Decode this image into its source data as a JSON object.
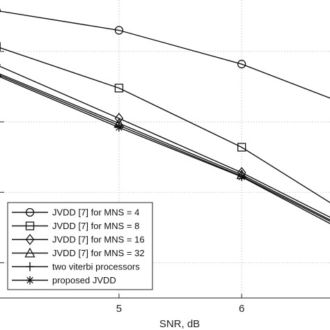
{
  "chart_data": {
    "type": "line",
    "title": "",
    "xlabel": "SNR, dB",
    "ylabel": "",
    "xlim": [
      4.03,
      6.72
    ],
    "ylog": true,
    "ylim_exponents": [
      -5.5,
      -1.27
    ],
    "grid": true,
    "legend_position": "bottom-left",
    "xticks": [
      {
        "value": 5,
        "label": "5"
      },
      {
        "value": 6,
        "label": "6"
      }
    ],
    "yticks_exponents": [
      -5,
      -4,
      -3,
      -2
    ],
    "series": [
      {
        "name": "JVDD [7] for MNS = 4",
        "marker": "circle",
        "x": [
          4,
          5,
          6,
          7
        ],
        "y_exp": [
          -1.42,
          -1.7,
          -2.18,
          -2.85
        ]
      },
      {
        "name": "JVDD [7] for MNS = 8",
        "marker": "square",
        "x": [
          4,
          5,
          6,
          7
        ],
        "y_exp": [
          -1.93,
          -2.52,
          -3.36,
          -4.45
        ]
      },
      {
        "name": "JVDD [7] for MNS = 16",
        "marker": "diamond",
        "x": [
          4,
          5,
          6,
          7
        ],
        "y_exp": [
          -2.19,
          -2.95,
          -3.72,
          -4.6
        ]
      },
      {
        "name": "JVDD [7] for MNS = 32",
        "marker": "triangle",
        "x": [
          4,
          5,
          6,
          7
        ],
        "y_exp": [
          -2.3,
          -3.02,
          -3.75,
          -4.64
        ]
      },
      {
        "name": "two viterbi processors",
        "marker": "plus",
        "x": [
          4,
          5,
          6,
          7
        ],
        "y_exp": [
          -2.32,
          -3.05,
          -3.77,
          -4.66
        ]
      },
      {
        "name": "proposed JVDD",
        "marker": "asterisk",
        "x": [
          4,
          5,
          6,
          7
        ],
        "y_exp": [
          -2.34,
          -3.08,
          -3.78,
          -4.7
        ]
      }
    ]
  }
}
